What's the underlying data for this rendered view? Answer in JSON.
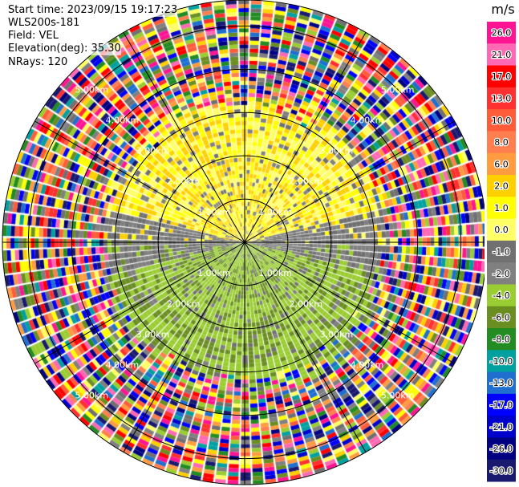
{
  "info": {
    "start_time": "Start time: 2023/09/15 19:17:23",
    "instrument": "WLS200s-181",
    "field": "Field: VEL",
    "elevation": "Elevation(deg): 35.30",
    "nrays": "NRays: 120"
  },
  "chart_data": {
    "type": "heatmap",
    "projection": "polar-ppi",
    "field": "VEL",
    "units": "m/s",
    "range_rings_km": [
      1.0,
      2.0,
      3.0,
      4.0,
      5.0
    ],
    "range_ring_labels": [
      "1.00km",
      "2.00km",
      "3.00km",
      "4.00km",
      "5.00km"
    ],
    "max_range_km": 5.6,
    "n_rays": 120,
    "elevation_deg": 35.3,
    "radial_lines_every_deg": 30,
    "colorbar": {
      "label": "m/s",
      "ticks": [
        "26.0",
        "21.0",
        "17.0",
        "13.0",
        "10.0",
        "8.0",
        "6.0",
        "2.0",
        "1.0",
        "0.0",
        "-1.0",
        "-2.0",
        "-4.0",
        "-6.0",
        "-8.0",
        "-10.0",
        "-13.0",
        "-17.0",
        "-21.0",
        "-26.0",
        "-30.0"
      ],
      "colors": [
        "#ff1493",
        "#ff69b4",
        "#ff0000",
        "#ff3030",
        "#ff5c3a",
        "#ff7f50",
        "#ff9c40",
        "#ffd000",
        "#ffff00",
        "#ffff66",
        "#707070",
        "#808080",
        "#9acd32",
        "#6b8e23",
        "#228b22",
        "#00a0a0",
        "#1e6fd0",
        "#0000ff",
        "#0000cd",
        "#000080",
        "#191970"
      ]
    },
    "pattern": {
      "near_north_sector": "yellow (approx +1 to +2 m/s)",
      "near_south_sector": "yellow-green (approx -1 to -2 m/s)",
      "east_west_band": "gray (approx 0 m/s)",
      "beyond_3km": "noisy mixed colors"
    }
  }
}
